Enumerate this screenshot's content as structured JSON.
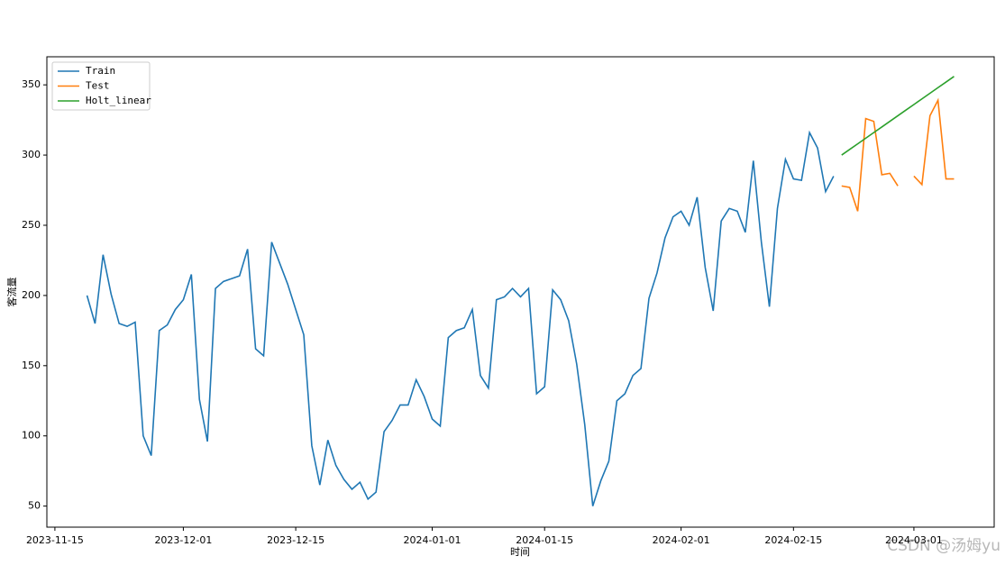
{
  "chart_data": {
    "type": "line",
    "x_label": "时间",
    "y_label": "客流量",
    "x": [
      "2023-11-19",
      "2023-11-20",
      "2023-11-21",
      "2023-11-22",
      "2023-11-23",
      "2023-11-24",
      "2023-11-25",
      "2023-11-26",
      "2023-11-27",
      "2023-11-28",
      "2023-11-29",
      "2023-11-30",
      "2023-12-01",
      "2023-12-02",
      "2023-12-03",
      "2023-12-04",
      "2023-12-05",
      "2023-12-06",
      "2023-12-07",
      "2023-12-08",
      "2023-12-09",
      "2023-12-10",
      "2023-12-11",
      "2023-12-12",
      "2023-12-13",
      "2023-12-14",
      "2023-12-15",
      "2023-12-16",
      "2023-12-17",
      "2023-12-18",
      "2023-12-19",
      "2023-12-20",
      "2023-12-21",
      "2023-12-22",
      "2023-12-23",
      "2023-12-24",
      "2023-12-25",
      "2023-12-26",
      "2023-12-27",
      "2023-12-28",
      "2023-12-29",
      "2023-12-30",
      "2023-12-31",
      "2024-01-01",
      "2024-01-02",
      "2024-01-03",
      "2024-01-04",
      "2024-01-05",
      "2024-01-06",
      "2024-01-07",
      "2024-01-08",
      "2024-01-09",
      "2024-01-10",
      "2024-01-11",
      "2024-01-12",
      "2024-01-13",
      "2024-01-14",
      "2024-01-15",
      "2024-01-16",
      "2024-01-17",
      "2024-01-18",
      "2024-01-19",
      "2024-01-20",
      "2024-01-21",
      "2024-01-22",
      "2024-01-23",
      "2024-01-24",
      "2024-01-25",
      "2024-01-26",
      "2024-01-27",
      "2024-01-28",
      "2024-01-29",
      "2024-01-30",
      "2024-01-31",
      "2024-02-01",
      "2024-02-02",
      "2024-02-03",
      "2024-02-04",
      "2024-02-05",
      "2024-02-06",
      "2024-02-07",
      "2024-02-08",
      "2024-02-09",
      "2024-02-10",
      "2024-02-11",
      "2024-02-12",
      "2024-02-13",
      "2024-02-14",
      "2024-02-15",
      "2024-02-16",
      "2024-02-17",
      "2024-02-18",
      "2024-02-19",
      "2024-02-20",
      "2024-02-21",
      "2024-02-22",
      "2024-02-23",
      "2024-02-24",
      "2024-02-25",
      "2024-02-26",
      "2024-02-27",
      "2024-02-28",
      "2024-02-29",
      "2024-03-01",
      "2024-03-02",
      "2024-03-03",
      "2024-03-04",
      "2024-03-05",
      "2024-03-06"
    ],
    "series": [
      {
        "name": "Train",
        "color": "#1f77b4",
        "values": [
          200,
          180,
          229,
          201,
          180,
          178,
          181,
          100,
          86,
          175,
          179,
          190,
          197,
          215,
          126,
          96,
          205,
          210,
          212,
          214,
          233,
          162,
          157,
          238,
          223,
          208,
          190,
          172,
          93,
          65,
          97,
          79,
          69,
          62,
          67,
          55,
          60,
          103,
          111,
          122,
          122,
          140,
          128,
          112,
          107,
          170,
          175,
          177,
          190,
          143,
          134,
          197,
          199,
          205,
          199,
          205,
          130,
          135,
          204,
          197,
          182,
          151,
          108,
          50,
          68,
          82,
          125,
          130,
          143,
          148,
          198,
          216,
          241,
          256,
          260,
          250,
          270,
          220,
          189,
          253,
          262,
          260,
          245,
          296,
          238,
          192,
          262,
          297,
          283,
          282,
          316,
          305,
          274,
          285,
          null,
          null,
          null,
          null,
          null,
          null,
          null,
          null,
          null,
          null,
          null,
          null,
          null,
          null,
          null
        ]
      },
      {
        "name": "Test",
        "color": "#ff7f0e",
        "values": [
          null,
          null,
          null,
          null,
          null,
          null,
          null,
          null,
          null,
          null,
          null,
          null,
          null,
          null,
          null,
          null,
          null,
          null,
          null,
          null,
          null,
          null,
          null,
          null,
          null,
          null,
          null,
          null,
          null,
          null,
          null,
          null,
          null,
          null,
          null,
          null,
          null,
          null,
          null,
          null,
          null,
          null,
          null,
          null,
          null,
          null,
          null,
          null,
          null,
          null,
          null,
          null,
          null,
          null,
          null,
          null,
          null,
          null,
          null,
          null,
          null,
          null,
          null,
          null,
          null,
          null,
          null,
          null,
          null,
          null,
          null,
          null,
          null,
          null,
          null,
          null,
          null,
          null,
          null,
          null,
          null,
          null,
          null,
          null,
          null,
          null,
          null,
          null,
          null,
          null,
          null,
          null,
          null,
          null,
          278,
          277,
          260,
          326,
          324,
          286,
          287,
          278,
          null,
          285,
          279,
          328,
          339,
          283,
          283
        ]
      },
      {
        "name": "Holt_linear",
        "color": "#2ca02c",
        "values": [
          null,
          null,
          null,
          null,
          null,
          null,
          null,
          null,
          null,
          null,
          null,
          null,
          null,
          null,
          null,
          null,
          null,
          null,
          null,
          null,
          null,
          null,
          null,
          null,
          null,
          null,
          null,
          null,
          null,
          null,
          null,
          null,
          null,
          null,
          null,
          null,
          null,
          null,
          null,
          null,
          null,
          null,
          null,
          null,
          null,
          null,
          null,
          null,
          null,
          null,
          null,
          null,
          null,
          null,
          null,
          null,
          null,
          null,
          null,
          null,
          null,
          null,
          null,
          null,
          null,
          null,
          null,
          null,
          null,
          null,
          null,
          null,
          null,
          null,
          null,
          null,
          null,
          null,
          null,
          null,
          null,
          null,
          null,
          null,
          null,
          null,
          null,
          null,
          null,
          null,
          null,
          null,
          null,
          null,
          300,
          304,
          308,
          312,
          316,
          320,
          324,
          328,
          332,
          336,
          340,
          344,
          348,
          352,
          356
        ]
      }
    ],
    "xlim": [
      "2023-11-14",
      "2024-03-11"
    ],
    "xticks": [
      "2023-11-15",
      "2023-12-01",
      "2023-12-15",
      "2024-01-01",
      "2024-01-15",
      "2024-02-01",
      "2024-02-15",
      "2024-03-01"
    ],
    "ylim": [
      35,
      370
    ],
    "yticks": [
      50,
      100,
      150,
      200,
      250,
      300,
      350
    ],
    "legend": "upper left",
    "watermark": "CSDN @汤姆yu"
  }
}
